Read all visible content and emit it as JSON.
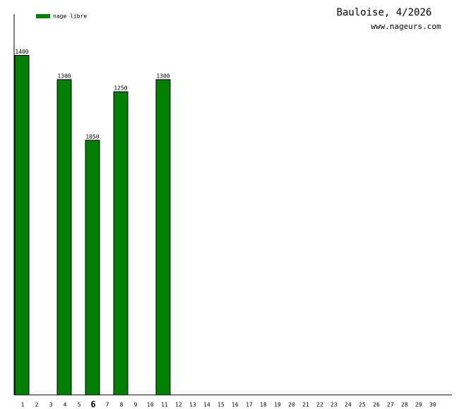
{
  "chart_data": {
    "type": "bar",
    "title": "Bauloise, 4/2026",
    "subtitle": "www.nageurs.com",
    "categories": [
      "1",
      "2",
      "3",
      "4",
      "5",
      "6",
      "7",
      "8",
      "9",
      "10",
      "11",
      "12",
      "13",
      "14",
      "15",
      "16",
      "17",
      "18",
      "19",
      "20",
      "21",
      "22",
      "23",
      "24",
      "25",
      "26",
      "27",
      "28",
      "29",
      "30"
    ],
    "series": [
      {
        "name": "nage libre",
        "color": "#007f00",
        "values": [
          1400,
          null,
          null,
          1300,
          null,
          1050,
          null,
          1250,
          null,
          null,
          1300,
          null,
          null,
          null,
          null,
          null,
          null,
          null,
          null,
          null,
          null,
          null,
          null,
          null,
          null,
          null,
          null,
          null,
          null,
          null
        ]
      }
    ],
    "highlight": 5,
    "ylim": [
      0,
      1570
    ]
  }
}
